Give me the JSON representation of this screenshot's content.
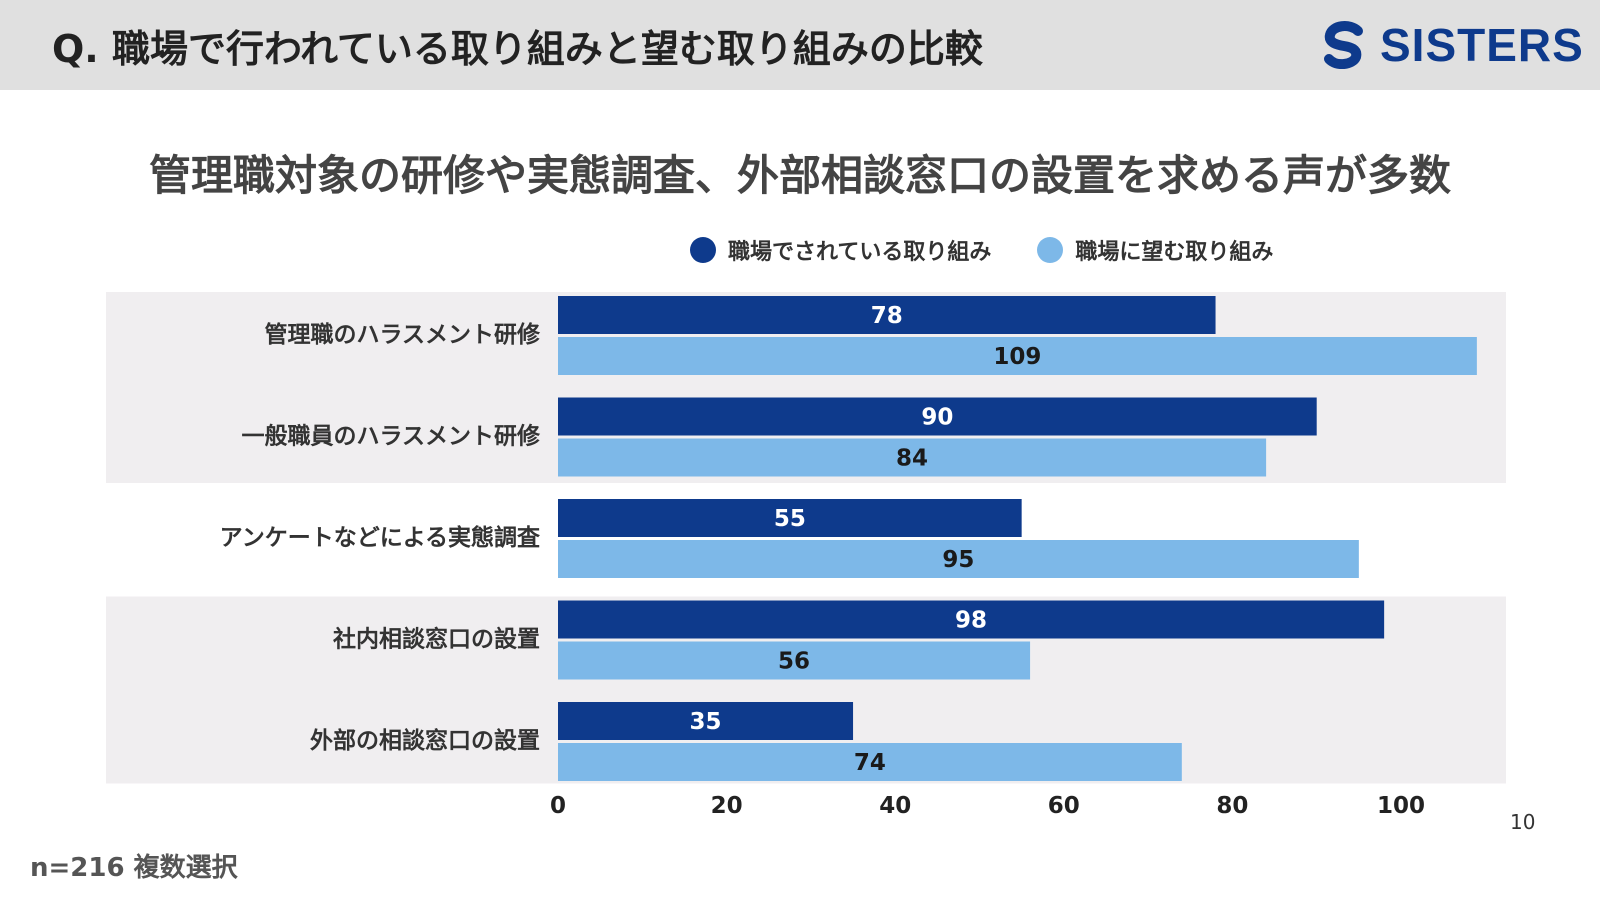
{
  "header": {
    "title": "Q. 職場で行われている取り組みと望む取り組みの比較",
    "brand": "SISTERS",
    "brand_color": "#0e3a8c"
  },
  "subtitle": "管理職対象の研修や実態調査、外部相談窓口の設置を求める声が多数",
  "legend": {
    "items": [
      {
        "label": "職場でされている取り組み",
        "color": "#0e3a8c"
      },
      {
        "label": "職場に望む取り組み",
        "color": "#7db8e8"
      }
    ]
  },
  "chart_data": {
    "type": "bar",
    "orientation": "horizontal",
    "categories": [
      "管理職のハラスメント研修",
      "一般職員のハラスメント研修",
      "アンケートなどによる実態調査",
      "社内相談窓口の設置",
      "外部の相談窓口の設置"
    ],
    "series": [
      {
        "name": "職場でされている取り組み",
        "values": [
          78,
          90,
          55,
          98,
          35
        ],
        "color": "#0e3a8c"
      },
      {
        "name": "職場に望む取り組み",
        "values": [
          109,
          84,
          95,
          56,
          74
        ],
        "color": "#7db8e8"
      }
    ],
    "xticks": [
      "0",
      "20",
      "40",
      "60",
      "80",
      "100"
    ],
    "xlim": [
      0,
      110
    ],
    "grid": false,
    "legend_position": "top"
  },
  "footer": {
    "sample_note": "n=216 複数選択",
    "page_number": "10"
  }
}
